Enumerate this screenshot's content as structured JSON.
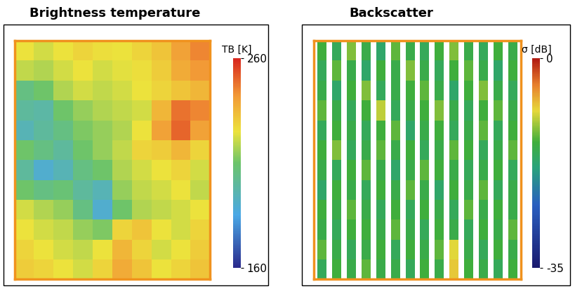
{
  "chart_data": [
    {
      "type": "heatmap",
      "title": "Brightness temperature",
      "tick_labels": false,
      "colorbar": {
        "label": "TB [K]",
        "range": [
          160,
          260
        ],
        "ticks": [
          160,
          260
        ]
      },
      "cells": [
        [
          225,
          222,
          225,
          228,
          226,
          225,
          228,
          232,
          240,
          245
        ],
        [
          220,
          218,
          222,
          225,
          222,
          224,
          226,
          230,
          238,
          242
        ],
        [
          205,
          210,
          218,
          222,
          220,
          222,
          225,
          228,
          232,
          235
        ],
        [
          200,
          198,
          210,
          215,
          218,
          220,
          222,
          235,
          248,
          245
        ],
        [
          195,
          200,
          205,
          212,
          215,
          218,
          225,
          240,
          250,
          240
        ],
        [
          210,
          205,
          200,
          210,
          215,
          220,
          228,
          230,
          235,
          228
        ],
        [
          200,
          190,
          195,
          205,
          210,
          218,
          222,
          225,
          228,
          222
        ],
        [
          210,
          205,
          208,
          200,
          195,
          215,
          220,
          222,
          225,
          220
        ],
        [
          222,
          218,
          215,
          205,
          190,
          210,
          218,
          220,
          222,
          225
        ],
        [
          225,
          222,
          220,
          215,
          212,
          228,
          232,
          225,
          222,
          228
        ],
        [
          228,
          225,
          222,
          220,
          225,
          235,
          228,
          222,
          225,
          230
        ],
        [
          230,
          228,
          225,
          222,
          228,
          238,
          232,
          225,
          228,
          232
        ]
      ]
    },
    {
      "type": "strips",
      "title": "Backscatter",
      "tick_labels": false,
      "colorbar": {
        "label": "σ [dB]",
        "range": [
          -35,
          0
        ],
        "ticks": [
          -35,
          0
        ]
      },
      "cells": [
        [
          -14,
          -16,
          -12,
          -15,
          -17,
          -13,
          -15,
          -16,
          -14,
          -12,
          -15,
          -16,
          -14,
          -15
        ],
        [
          -16,
          -13,
          -15,
          -17,
          -14,
          -15,
          -12,
          -15,
          -16,
          -14,
          -13,
          -15,
          -17,
          -14
        ],
        [
          -15,
          -17,
          -14,
          -12,
          -16,
          -15,
          -14,
          -13,
          -15,
          -17,
          -14,
          -12,
          -15,
          -16
        ],
        [
          -13,
          -15,
          -16,
          -14,
          -10,
          -16,
          -15,
          -14,
          -12,
          -15,
          -16,
          -14,
          -13,
          -15
        ],
        [
          -16,
          -14,
          -15,
          -16,
          -14,
          -13,
          -17,
          -15,
          -14,
          -16,
          -15,
          -13,
          -16,
          -14
        ],
        [
          -14,
          -12,
          -16,
          -15,
          -13,
          -15,
          -14,
          -16,
          -15,
          -13,
          -14,
          -16,
          -15,
          -13
        ],
        [
          -15,
          -16,
          -14,
          -13,
          -15,
          -17,
          -15,
          -13,
          -14,
          -15,
          -16,
          -15,
          -14,
          -16
        ],
        [
          -17,
          -14,
          -15,
          -16,
          -14,
          -15,
          -13,
          -15,
          -17,
          -14,
          -15,
          -13,
          -16,
          -15
        ],
        [
          -14,
          -15,
          -13,
          -15,
          -16,
          -14,
          -16,
          -14,
          -15,
          -16,
          -13,
          -15,
          -14,
          -15
        ],
        [
          -15,
          -16,
          -14,
          -14,
          -15,
          -13,
          -15,
          -16,
          -14,
          -15,
          -16,
          -14,
          -15,
          -13
        ],
        [
          -13,
          -15,
          -16,
          -15,
          -14,
          -16,
          -14,
          -15,
          -13,
          -9,
          -15,
          -16,
          -14,
          -15
        ],
        [
          -16,
          -14,
          -15,
          -13,
          -15,
          -15,
          -16,
          -14,
          -15,
          -8,
          -14,
          -15,
          -16,
          -14
        ]
      ]
    }
  ]
}
